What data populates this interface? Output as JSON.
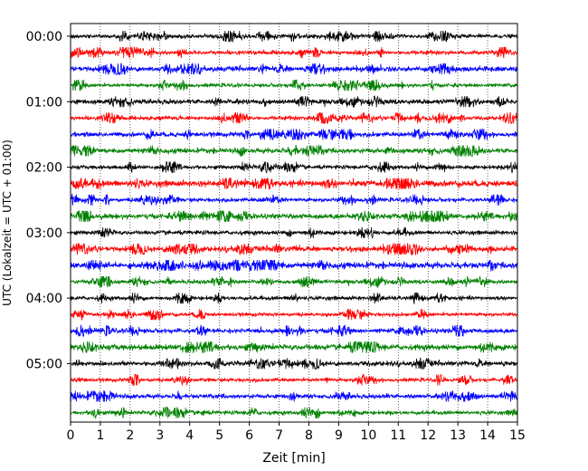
{
  "chart_data": {
    "type": "line",
    "title": "",
    "xlabel": "Zeit  [min]",
    "ylabel": "UTC (Lokalzeit = UTC + 01:00)",
    "xlim": [
      0,
      15
    ],
    "x_ticks": [
      "0",
      "1",
      "2",
      "3",
      "4",
      "5",
      "6",
      "7",
      "8",
      "9",
      "10",
      "11",
      "12",
      "13",
      "14",
      "15"
    ],
    "y_tick_labels": [
      "00:00",
      "01:00",
      "02:00",
      "03:00",
      "04:00",
      "05:00"
    ],
    "grid": "vertical dotted lines at each minute",
    "trace_interval_minutes": 15,
    "trace_count": 24,
    "trace_colors": [
      "#000000",
      "#ff0000",
      "#0000ff",
      "#008000"
    ],
    "trace_start_times": [
      "00:00",
      "00:15",
      "00:30",
      "00:45",
      "01:00",
      "01:15",
      "01:30",
      "01:45",
      "02:00",
      "02:15",
      "02:30",
      "02:45",
      "03:00",
      "03:15",
      "03:30",
      "03:45",
      "04:00",
      "04:15",
      "04:30",
      "04:45",
      "05:00",
      "05:15",
      "05:30",
      "05:45"
    ],
    "legend": "none"
  }
}
